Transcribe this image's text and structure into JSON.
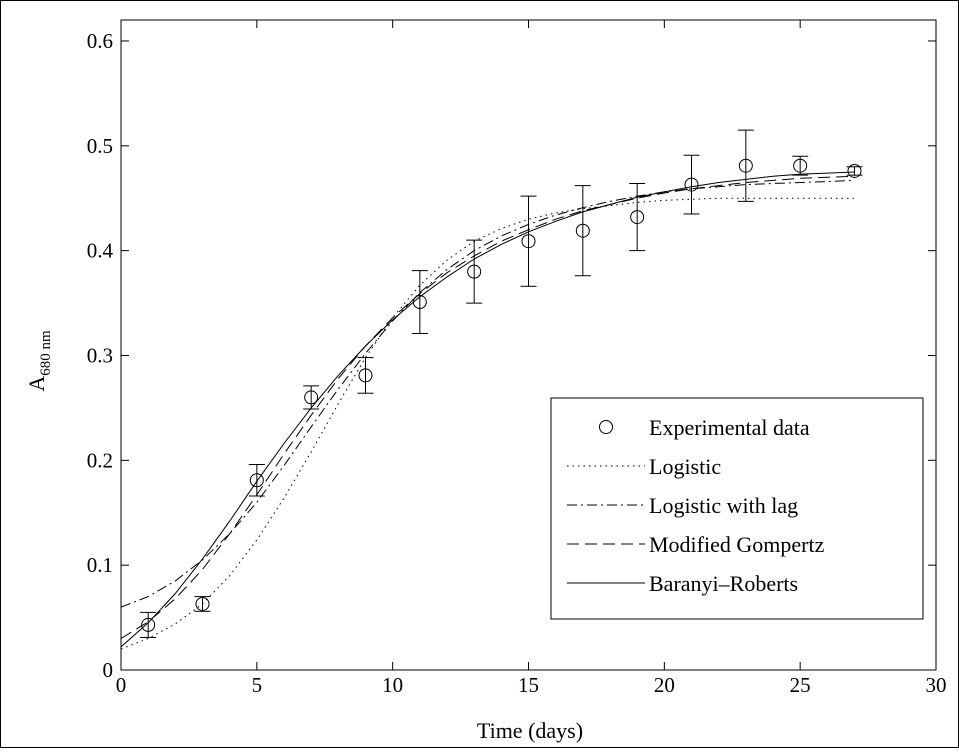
{
  "chart_data": {
    "type": "line",
    "title": "",
    "xlabel": "Time (days)",
    "ylabel_main": "A",
    "ylabel_sub": "680 nm",
    "xlim": [
      0,
      30
    ],
    "ylim": [
      0,
      0.62
    ],
    "xticks": [
      0,
      5,
      10,
      15,
      20,
      25,
      30
    ],
    "xtick_labels": [
      "0",
      "5",
      "10",
      "15",
      "20",
      "25",
      "30"
    ],
    "yticks": [
      0,
      0.1,
      0.2,
      0.3,
      0.4,
      0.5,
      0.6
    ],
    "ytick_labels": [
      "0",
      "0.1",
      "0.2",
      "0.3",
      "0.4",
      "0.5",
      "0.6"
    ],
    "grid": false,
    "legend_position": "lower-right",
    "experimental": {
      "name": "Experimental data",
      "marker": "circle",
      "x": [
        1,
        3,
        5,
        7,
        9,
        11,
        13,
        15,
        17,
        19,
        21,
        23,
        25,
        27
      ],
      "y": [
        0.043,
        0.063,
        0.181,
        0.26,
        0.281,
        0.351,
        0.38,
        0.409,
        0.419,
        0.432,
        0.463,
        0.481,
        0.481,
        0.476
      ],
      "err": [
        0.012,
        0.007,
        0.015,
        0.011,
        0.017,
        0.03,
        0.03,
        0.043,
        0.043,
        0.032,
        0.028,
        0.034,
        0.009,
        0.004
      ]
    },
    "series": [
      {
        "name": "Logistic",
        "style": "dotted",
        "x": [
          0,
          1,
          2,
          3,
          4,
          5,
          6,
          7,
          8,
          9,
          10,
          11,
          12,
          13,
          14,
          15,
          16,
          17,
          18,
          19,
          20,
          21,
          22,
          23,
          24,
          25,
          26,
          27
        ],
        "y": [
          0.02,
          0.03,
          0.044,
          0.063,
          0.09,
          0.124,
          0.164,
          0.208,
          0.254,
          0.298,
          0.336,
          0.367,
          0.391,
          0.409,
          0.421,
          0.43,
          0.436,
          0.44,
          0.443,
          0.446,
          0.448,
          0.449,
          0.45,
          0.45,
          0.45,
          0.45,
          0.45,
          0.45
        ]
      },
      {
        "name": "Logistic with lag",
        "style": "dashdot",
        "x": [
          0,
          1,
          2,
          3,
          4,
          5,
          6,
          7,
          8,
          9,
          10,
          11,
          12,
          13,
          14,
          15,
          16,
          17,
          18,
          19,
          20,
          21,
          22,
          23,
          24,
          25,
          26,
          27
        ],
        "y": [
          0.06,
          0.07,
          0.085,
          0.105,
          0.13,
          0.16,
          0.195,
          0.232,
          0.268,
          0.302,
          0.333,
          0.36,
          0.382,
          0.4,
          0.414,
          0.425,
          0.434,
          0.441,
          0.447,
          0.452,
          0.456,
          0.459,
          0.461,
          0.463,
          0.464,
          0.465,
          0.466,
          0.467
        ]
      },
      {
        "name": "Modified Gompertz",
        "style": "dashed",
        "x": [
          0,
          1,
          2,
          3,
          4,
          5,
          6,
          7,
          8,
          9,
          10,
          11,
          12,
          13,
          14,
          15,
          16,
          17,
          18,
          19,
          20,
          21,
          22,
          23,
          24,
          25,
          26,
          27
        ],
        "y": [
          0.03,
          0.046,
          0.068,
          0.096,
          0.13,
          0.167,
          0.206,
          0.243,
          0.278,
          0.309,
          0.336,
          0.359,
          0.379,
          0.395,
          0.409,
          0.42,
          0.43,
          0.438,
          0.444,
          0.45,
          0.455,
          0.459,
          0.462,
          0.465,
          0.467,
          0.469,
          0.47,
          0.471
        ]
      },
      {
        "name": "Baranyi–Roberts",
        "style": "solid",
        "x": [
          0,
          1,
          2,
          3,
          4,
          5,
          6,
          7,
          8,
          9,
          10,
          11,
          12,
          13,
          14,
          15,
          16,
          17,
          18,
          19,
          20,
          21,
          22,
          23,
          24,
          25,
          26,
          27
        ],
        "y": [
          0.022,
          0.045,
          0.073,
          0.106,
          0.142,
          0.18,
          0.216,
          0.25,
          0.281,
          0.309,
          0.334,
          0.356,
          0.375,
          0.392,
          0.406,
          0.418,
          0.428,
          0.437,
          0.444,
          0.451,
          0.456,
          0.461,
          0.465,
          0.468,
          0.471,
          0.473,
          0.474,
          0.475
        ]
      }
    ]
  }
}
